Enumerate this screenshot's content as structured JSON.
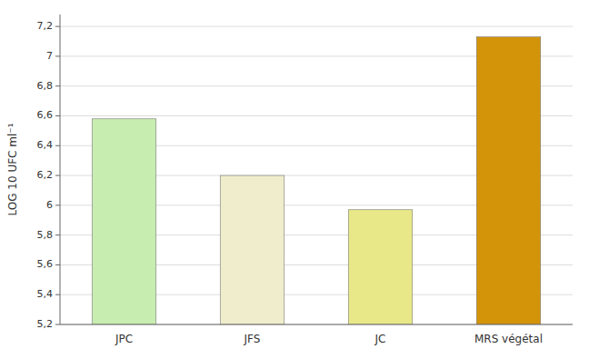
{
  "chart_data": {
    "type": "bar",
    "categories": [
      "JPC",
      "JFS",
      "JC",
      "MRS végétal"
    ],
    "values": [
      6.58,
      6.2,
      5.97,
      7.13
    ],
    "colors": [
      "#c8edb0",
      "#f0edcc",
      "#e8e888",
      "#d4940a"
    ],
    "ylabel": "LOG 10 UFC ml⁻¹",
    "ylim": [
      5.2,
      7.28
    ],
    "yticks": [
      {
        "value": 5.2,
        "label": "5,2"
      },
      {
        "value": 5.4,
        "label": "5,4"
      },
      {
        "value": 5.6,
        "label": "5,6"
      },
      {
        "value": 5.8,
        "label": "5,8"
      },
      6,
      {
        "value": 6.2,
        "label": "6,2"
      },
      {
        "value": 6.4,
        "label": "6,4"
      },
      {
        "value": 6.6,
        "label": "6,6"
      },
      {
        "value": 6.8,
        "label": "6,8"
      },
      7,
      {
        "value": 7.2,
        "label": "7,2"
      }
    ],
    "grid": true
  }
}
